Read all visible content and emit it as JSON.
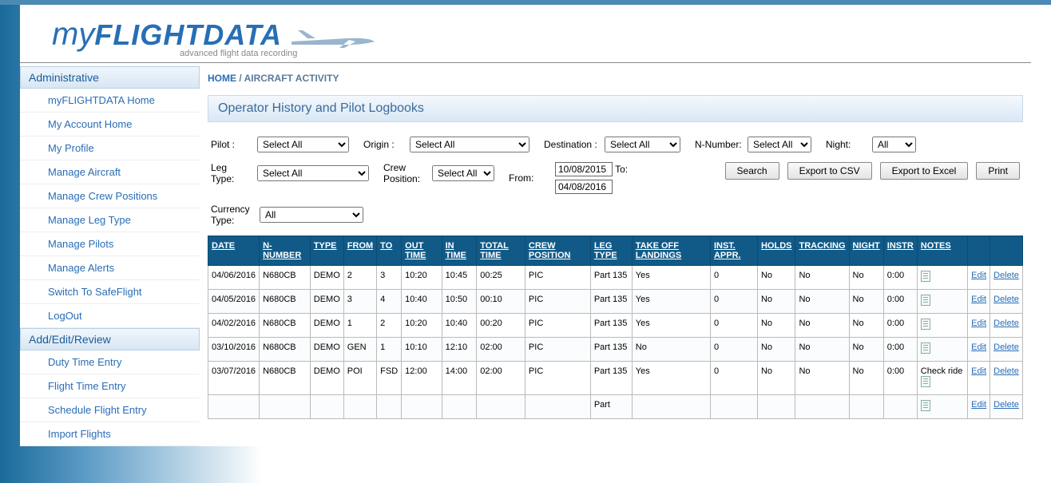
{
  "logo": {
    "my": "my",
    "fd": "FLIGHTDATA",
    "tagline": "advanced flight data recording"
  },
  "breadcrumb": {
    "home": "HOME",
    "sep": " / ",
    "current": "AIRCRAFT ACTIVITY"
  },
  "panel_title": "Operator History and Pilot Logbooks",
  "sidebar": {
    "sections": [
      {
        "title": "Administrative",
        "items": [
          "myFLIGHTDATA Home",
          "My Account Home",
          "My Profile",
          "Manage Aircraft",
          "Manage Crew Positions",
          "Manage Leg Type",
          "Manage Pilots",
          "Manage Alerts",
          "Switch To SafeFlight",
          "LogOut"
        ]
      },
      {
        "title": "Add/Edit/Review",
        "items": [
          "Duty Time Entry",
          "Flight Time Entry",
          "Schedule Flight Entry",
          "Import Flights"
        ]
      }
    ]
  },
  "filters": {
    "pilot_label": "Pilot :",
    "pilot_value": "Select All",
    "origin_label": "Origin :",
    "origin_value": "Select All",
    "dest_label": "Destination :",
    "dest_value": "Select All",
    "nnum_label": "N-Number:",
    "nnum_value": "Select All",
    "night_label": "Night:",
    "night_value": "All",
    "legtype_label": "Leg Type:",
    "legtype_value": "Select All",
    "crewpos_label": "Crew Position:",
    "crewpos_value": "Select All",
    "from_label": "From:",
    "from_value": "10/08/2015",
    "to_label": "To:",
    "to_value": "04/08/2016",
    "currency_label": "Currency Type:",
    "currency_value": "All",
    "btn_search": "Search",
    "btn_csv": "Export to CSV",
    "btn_excel": "Export to Excel",
    "btn_print": "Print"
  },
  "table": {
    "headers": [
      "DATE",
      "N-NUMBER",
      "TYPE",
      "FROM",
      "TO",
      "OUT TIME",
      "IN TIME",
      "TOTAL TIME",
      "CREW POSITION",
      "LEG TYPE",
      "TAKE OFF LANDINGS",
      "INST. APPR.",
      "HOLDS",
      "TRACKING",
      "NIGHT",
      "INSTR",
      "NOTES",
      "",
      ""
    ],
    "edit_label": "Edit",
    "delete_label": "Delete",
    "rows": [
      {
        "date": "04/06/2016",
        "n": "N680CB",
        "type": "DEMO",
        "from": "2",
        "to": "3",
        "out": "10:20",
        "in": "10:45",
        "total": "00:25",
        "crew": "PIC",
        "leg": "Part 135",
        "tol": "Yes",
        "inst": "0",
        "holds": "No",
        "track": "No",
        "night": "No",
        "instr": "0:00",
        "notes": ""
      },
      {
        "date": "04/05/2016",
        "n": "N680CB",
        "type": "DEMO",
        "from": "3",
        "to": "4",
        "out": "10:40",
        "in": "10:50",
        "total": "00:10",
        "crew": "PIC",
        "leg": "Part 135",
        "tol": "Yes",
        "inst": "0",
        "holds": "No",
        "track": "No",
        "night": "No",
        "instr": "0:00",
        "notes": ""
      },
      {
        "date": "04/02/2016",
        "n": "N680CB",
        "type": "DEMO",
        "from": "1",
        "to": "2",
        "out": "10:20",
        "in": "10:40",
        "total": "00:20",
        "crew": "PIC",
        "leg": "Part 135",
        "tol": "Yes",
        "inst": "0",
        "holds": "No",
        "track": "No",
        "night": "No",
        "instr": "0:00",
        "notes": ""
      },
      {
        "date": "03/10/2016",
        "n": "N680CB",
        "type": "DEMO",
        "from": "GEN",
        "to": "1",
        "out": "10:10",
        "in": "12:10",
        "total": "02:00",
        "crew": "PIC",
        "leg": "Part 135",
        "tol": "No",
        "inst": "0",
        "holds": "No",
        "track": "No",
        "night": "No",
        "instr": "0:00",
        "notes": ""
      },
      {
        "date": "03/07/2016",
        "n": "N680CB",
        "type": "DEMO",
        "from": "POI",
        "to": "FSD",
        "out": "12:00",
        "in": "14:00",
        "total": "02:00",
        "crew": "PIC",
        "leg": "Part 135",
        "tol": "Yes",
        "inst": "0",
        "holds": "No",
        "track": "No",
        "night": "No",
        "instr": "0:00",
        "notes": "Check ride"
      },
      {
        "date": "",
        "n": "",
        "type": "",
        "from": "",
        "to": "",
        "out": "",
        "in": "",
        "total": "",
        "crew": "",
        "leg": "Part",
        "tol": "",
        "inst": "",
        "holds": "",
        "track": "",
        "night": "",
        "instr": "",
        "notes": ""
      }
    ]
  },
  "colors": {
    "header_bg": "#115a87",
    "link": "#2a6db5",
    "panel_grad_top": "#f4f8fc",
    "panel_grad_bot": "#d9e8f5"
  }
}
